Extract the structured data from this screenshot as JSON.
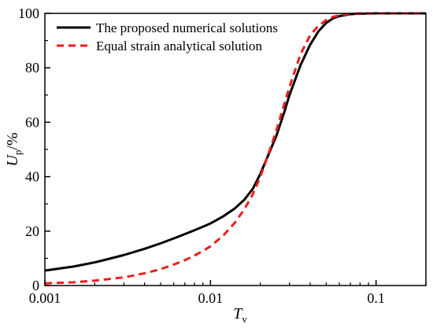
{
  "chart_data": {
    "type": "line",
    "xscale": "log",
    "xlim": [
      0.001,
      0.2
    ],
    "ylim": [
      0,
      100
    ],
    "x_ticks": [
      {
        "value": 0.001,
        "label": "0.001"
      },
      {
        "value": 0.01,
        "label": "0.01"
      },
      {
        "value": 0.1,
        "label": "0.1"
      }
    ],
    "y_ticks": [
      {
        "value": 0,
        "label": "0"
      },
      {
        "value": 20,
        "label": "20"
      },
      {
        "value": 40,
        "label": "40"
      },
      {
        "value": 60,
        "label": "60"
      },
      {
        "value": 80,
        "label": "80"
      },
      {
        "value": 100,
        "label": "100"
      }
    ],
    "xlabel": {
      "main": "T",
      "sub": "v"
    },
    "ylabel": {
      "main": "U",
      "sub": "p",
      "unit": "/%"
    },
    "grid": false,
    "legend_position": "top-left",
    "series": [
      {
        "name": "The proposed numerical solutions",
        "color": "#000000",
        "dash": "solid",
        "x": [
          0.001,
          0.0015,
          0.002,
          0.003,
          0.004,
          0.005,
          0.006,
          0.007,
          0.008,
          0.009,
          0.01,
          0.012,
          0.014,
          0.016,
          0.018,
          0.02,
          0.022,
          0.025,
          0.028,
          0.03,
          0.035,
          0.04,
          0.045,
          0.05,
          0.055,
          0.06,
          0.07,
          0.08,
          0.1,
          0.15,
          0.2
        ],
        "y": [
          5.5,
          7.0,
          8.5,
          11.2,
          13.5,
          15.5,
          17.3,
          18.9,
          20.3,
          21.6,
          22.8,
          25.5,
          28.3,
          31.5,
          35.5,
          41.0,
          47.0,
          55.0,
          64.0,
          70.0,
          81.0,
          88.5,
          93.5,
          96.5,
          98.2,
          99.0,
          99.7,
          99.9,
          100,
          100,
          100
        ]
      },
      {
        "name": "Equal strain analytical solution",
        "color": "#ee1c1c",
        "dash": "dashed",
        "x": [
          0.001,
          0.0015,
          0.002,
          0.003,
          0.004,
          0.005,
          0.006,
          0.007,
          0.008,
          0.009,
          0.01,
          0.012,
          0.014,
          0.016,
          0.018,
          0.02,
          0.022,
          0.025,
          0.028,
          0.03,
          0.035,
          0.04,
          0.045,
          0.05,
          0.055,
          0.06,
          0.07,
          0.08,
          0.1,
          0.15,
          0.2
        ],
        "y": [
          0.8,
          1.2,
          1.8,
          3.0,
          4.5,
          6.0,
          7.7,
          9.3,
          11.0,
          12.7,
          14.4,
          18.5,
          23.0,
          28.0,
          33.5,
          40.0,
          47.0,
          57.0,
          67.0,
          73.0,
          85.0,
          92.0,
          95.5,
          97.5,
          98.7,
          99.3,
          99.8,
          100,
          100,
          100,
          100
        ]
      }
    ]
  }
}
